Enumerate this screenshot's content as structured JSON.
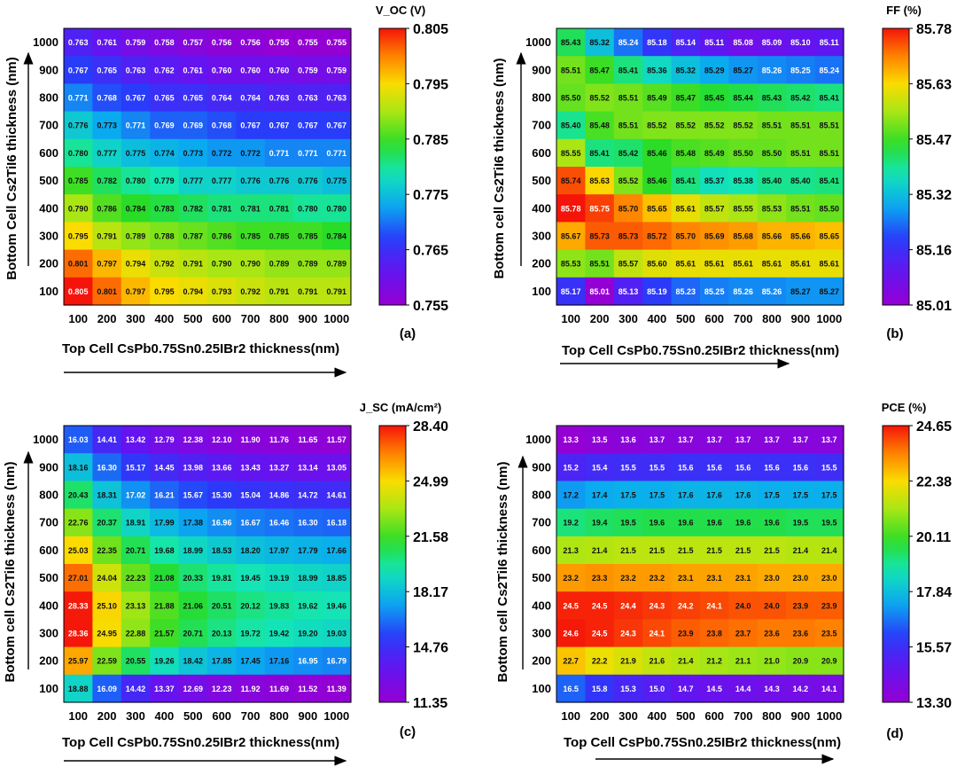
{
  "chart_data": [
    {
      "panel": "(a)",
      "type": "heatmap",
      "colorbar_title": "V_OC (V)",
      "colorbar_ticks": [
        "0.805",
        "0.795",
        "0.785",
        "0.775",
        "0.765",
        "0.755"
      ],
      "vmin": 0.755,
      "vmax": 0.805,
      "xlabel": "Top Cell CsPb0.75Sn0.25IBr2  thickness(nm)",
      "ylabel": "Bottom Cell Cs2TiI6 thickness (nm)",
      "x": [
        "100",
        "200",
        "300",
        "400",
        "500",
        "600",
        "700",
        "800",
        "900",
        "1000"
      ],
      "y": [
        "1000",
        "900",
        "800",
        "700",
        "600",
        "500",
        "400",
        "300",
        "200",
        "100"
      ],
      "values": [
        [
          "0.763",
          "0.761",
          "0.759",
          "0.758",
          "0.757",
          "0.756",
          "0.756",
          "0.755",
          "0.755",
          "0.755"
        ],
        [
          "0.767",
          "0.765",
          "0.763",
          "0.762",
          "0.761",
          "0.760",
          "0.760",
          "0.760",
          "0.759",
          "0.759"
        ],
        [
          "0.771",
          "0.768",
          "0.767",
          "0.765",
          "0.765",
          "0.764",
          "0.764",
          "0.763",
          "0.763",
          "0.763"
        ],
        [
          "0.776",
          "0.773",
          "0.771",
          "0.769",
          "0.769",
          "0.768",
          "0.767",
          "0.767",
          "0.767",
          "0.767"
        ],
        [
          "0.780",
          "0.777",
          "0.775",
          "0.774",
          "0.773",
          "0.772",
          "0.772",
          "0.771",
          "0.771",
          "0.771"
        ],
        [
          "0.785",
          "0.782",
          "0.780",
          "0.779",
          "0.777",
          "0.777",
          "0.776",
          "0.776",
          "0.776",
          "0.775"
        ],
        [
          "0.790",
          "0.786",
          "0.784",
          "0.783",
          "0.782",
          "0.781",
          "0.781",
          "0.781",
          "0.780",
          "0.780"
        ],
        [
          "0.795",
          "0.791",
          "0.789",
          "0.788",
          "0.787",
          "0.786",
          "0.785",
          "0.785",
          "0.785",
          "0.784"
        ],
        [
          "0.801",
          "0.797",
          "0.794",
          "0.792",
          "0.791",
          "0.790",
          "0.790",
          "0.789",
          "0.789",
          "0.789"
        ],
        [
          "0.805",
          "0.801",
          "0.797",
          "0.795",
          "0.794",
          "0.793",
          "0.792",
          "0.791",
          "0.791",
          "0.791"
        ]
      ]
    },
    {
      "panel": "(b)",
      "type": "heatmap",
      "colorbar_title": "FF (%)",
      "colorbar_ticks": [
        "85.78",
        "85.63",
        "85.47",
        "85.32",
        "85.16",
        "85.01"
      ],
      "vmin": 85.01,
      "vmax": 85.78,
      "xlabel": "Top Cell CsPb0.75Sn0.25IBr2  thickness(nm)",
      "ylabel": "Bottom cell Cs2TiI6 thickness (nm)",
      "x": [
        "100",
        "200",
        "300",
        "400",
        "500",
        "600",
        "700",
        "800",
        "900",
        "1000"
      ],
      "y": [
        "1000",
        "900",
        "800",
        "700",
        "600",
        "500",
        "400",
        "300",
        "200",
        "100"
      ],
      "values": [
        [
          "85.43",
          "85.32",
          "85.24",
          "85.18",
          "85.14",
          "85.11",
          "85.08",
          "85.09",
          "85.10",
          "85.11"
        ],
        [
          "85.51",
          "85.47",
          "85.41",
          "85.36",
          "85.32",
          "85.29",
          "85.27",
          "85.26",
          "85.25",
          "85.24"
        ],
        [
          "85.50",
          "85.52",
          "85.51",
          "85.49",
          "85.47",
          "85.45",
          "85.44",
          "85.43",
          "85.42",
          "85.41"
        ],
        [
          "85.40",
          "85.48",
          "85.51",
          "85.52",
          "85.52",
          "85.52",
          "85.52",
          "85.51",
          "85.51",
          "85.51"
        ],
        [
          "85.55",
          "85.41",
          "85.42",
          "85.46",
          "85.48",
          "85.49",
          "85.50",
          "85.50",
          "85.51",
          "85.51"
        ],
        [
          "85.74",
          "85.63",
          "85.52",
          "85.46",
          "85.41",
          "85.37",
          "85.38",
          "85.40",
          "85.40",
          "85.41"
        ],
        [
          "85.78",
          "85.75",
          "85.70",
          "85.65",
          "85.61",
          "85.57",
          "85.55",
          "85.53",
          "85.51",
          "85.50"
        ],
        [
          "85.67",
          "85.73",
          "85.73",
          "85.72",
          "85.70",
          "85.69",
          "85.68",
          "85.66",
          "85.66",
          "85.65"
        ],
        [
          "85.53",
          "85.51",
          "85.57",
          "85.60",
          "85.61",
          "85.61",
          "85.61",
          "85.61",
          "85.61",
          "85.61"
        ],
        [
          "85.17",
          "85.01",
          "85.13",
          "85.19",
          "85.23",
          "85.25",
          "85.26",
          "85.26",
          "85.27",
          "85.27"
        ]
      ]
    },
    {
      "panel": "(c)",
      "type": "heatmap",
      "colorbar_title": "J_SC (mA/cm²)",
      "colorbar_ticks": [
        "28.40",
        "24.99",
        "21.58",
        "18.17",
        "14.76",
        "11.35"
      ],
      "vmin": 11.35,
      "vmax": 28.4,
      "xlabel": "Top Cell CsPb0.75Sn0.25IBr2  thickness(nm)",
      "ylabel": "Bottom cell Cs2TiI6 thickness (nm)",
      "x": [
        "100",
        "200",
        "300",
        "400",
        "500",
        "600",
        "700",
        "800",
        "900",
        "1000"
      ],
      "y": [
        "1000",
        "900",
        "800",
        "700",
        "600",
        "500",
        "400",
        "300",
        "200",
        "100"
      ],
      "values": [
        [
          "16.03",
          "14.41",
          "13.42",
          "12.79",
          "12.38",
          "12.10",
          "11.90",
          "11.76",
          "11.65",
          "11.57"
        ],
        [
          "18.16",
          "16.30",
          "15.17",
          "14.45",
          "13.98",
          "13.66",
          "13.43",
          "13.27",
          "13.14",
          "13.05"
        ],
        [
          "20.43",
          "18.31",
          "17.02",
          "16.21",
          "15.67",
          "15.30",
          "15.04",
          "14.86",
          "14.72",
          "14.61"
        ],
        [
          "22.76",
          "20.37",
          "18.91",
          "17.99",
          "17.38",
          "16.96",
          "16.67",
          "16.46",
          "16.30",
          "16.18"
        ],
        [
          "25.03",
          "22.35",
          "20.71",
          "19.68",
          "18.99",
          "18.53",
          "18.20",
          "17.97",
          "17.79",
          "17.66"
        ],
        [
          "27.01",
          "24.04",
          "22.23",
          "21.08",
          "20.33",
          "19.81",
          "19.45",
          "19.19",
          "18.99",
          "18.85"
        ],
        [
          "28.33",
          "25.10",
          "23.13",
          "21.88",
          "21.06",
          "20.51",
          "20.12",
          "19.83",
          "19.62",
          "19.46"
        ],
        [
          "28.36",
          "24.95",
          "22.88",
          "21.57",
          "20.71",
          "20.13",
          "19.72",
          "19.42",
          "19.20",
          "19.03"
        ],
        [
          "25.97",
          "22.59",
          "20.55",
          "19.26",
          "18.42",
          "17.85",
          "17.45",
          "17.16",
          "16.95",
          "16.79"
        ],
        [
          "18.88",
          "16.09",
          "14.42",
          "13.37",
          "12.69",
          "12.23",
          "11.92",
          "11.69",
          "11.52",
          "11.39"
        ]
      ]
    },
    {
      "panel": "(d)",
      "type": "heatmap",
      "colorbar_title": "PCE (%)",
      "colorbar_ticks": [
        "24.65",
        "22.38",
        "20.11",
        "17.84",
        "15.57",
        "13.30"
      ],
      "vmin": 13.3,
      "vmax": 24.65,
      "xlabel": "Top Cell CsPb0.75Sn0.25IBr2  thickness(nm)",
      "ylabel": "Bottom cell Cs2TiI6 thickness (nm)",
      "x": [
        "100",
        "200",
        "300",
        "400",
        "500",
        "600",
        "700",
        "800",
        "900",
        "1000"
      ],
      "y": [
        "1000",
        "900",
        "800",
        "700",
        "600",
        "500",
        "400",
        "300",
        "200",
        "100"
      ],
      "values": [
        [
          "13.3",
          "13.5",
          "13.6",
          "13.7",
          "13.7",
          "13.7",
          "13.7",
          "13.7",
          "13.7",
          "13.7"
        ],
        [
          "15.2",
          "15.4",
          "15.5",
          "15.5",
          "15.6",
          "15.6",
          "15.6",
          "15.6",
          "15.6",
          "15.5"
        ],
        [
          "17.2",
          "17.4",
          "17.5",
          "17.5",
          "17.6",
          "17.6",
          "17.6",
          "17.5",
          "17.5",
          "17.5"
        ],
        [
          "19.2",
          "19.4",
          "19.5",
          "19.6",
          "19.6",
          "19.6",
          "19.6",
          "19.6",
          "19.5",
          "19.5"
        ],
        [
          "21.3",
          "21.4",
          "21.5",
          "21.5",
          "21.5",
          "21.5",
          "21.5",
          "21.5",
          "21.4",
          "21.4"
        ],
        [
          "23.2",
          "23.3",
          "23.2",
          "23.2",
          "23.1",
          "23.1",
          "23.1",
          "23.0",
          "23.0",
          "23.0"
        ],
        [
          "24.5",
          "24.5",
          "24.4",
          "24.3",
          "24.2",
          "24.1",
          "24.0",
          "24.0",
          "23.9",
          "23.9"
        ],
        [
          "24.6",
          "24.5",
          "24.3",
          "24.1",
          "23.9",
          "23.8",
          "23.7",
          "23.6",
          "23.6",
          "23.5"
        ],
        [
          "22.7",
          "22.2",
          "21.9",
          "21.6",
          "21.4",
          "21.2",
          "21.1",
          "21.0",
          "20.9",
          "20.9"
        ],
        [
          "16.5",
          "15.8",
          "15.3",
          "15.0",
          "14.7",
          "14.5",
          "14.4",
          "14.3",
          "14.2",
          "14.1"
        ]
      ]
    }
  ]
}
